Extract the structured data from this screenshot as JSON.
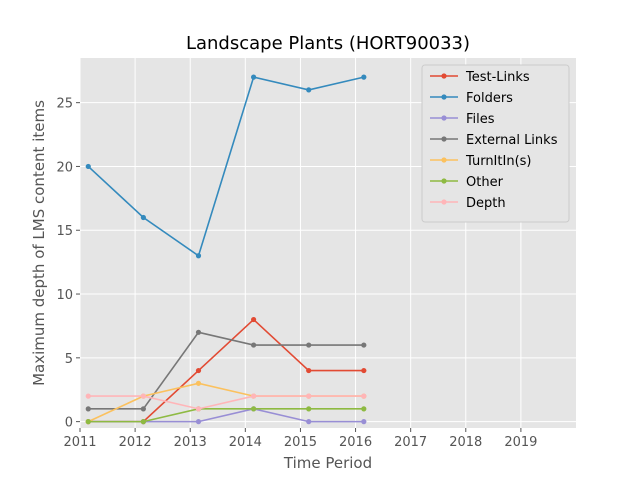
{
  "chart_data": {
    "type": "line",
    "title": "Landscape Plants (HORT90033)",
    "xlabel": "Time Period",
    "ylabel": "Maximum depth of LMS content items",
    "xlim": [
      2011,
      2020
    ],
    "ylim": [
      -0.5,
      28.5
    ],
    "xticks": [
      "2011",
      "2012",
      "2013",
      "2014",
      "2015",
      "2016",
      "2017",
      "2018",
      "2019"
    ],
    "yticks": [
      "0",
      "5",
      "10",
      "15",
      "20",
      "25"
    ],
    "x": [
      2011.15,
      2012.15,
      2013.15,
      2014.15,
      2015.15,
      2016.15
    ],
    "grid": true,
    "legend_position": "top-right",
    "series": [
      {
        "name": "Test-Links",
        "color": "#E24A33",
        "values": [
          0,
          0,
          4,
          8,
          4,
          4
        ]
      },
      {
        "name": "Folders",
        "color": "#348ABD",
        "values": [
          20,
          16,
          13,
          27,
          26,
          27
        ]
      },
      {
        "name": "Files",
        "color": "#988ED5",
        "values": [
          0,
          0,
          0,
          1,
          0,
          0
        ]
      },
      {
        "name": "External Links",
        "color": "#777777",
        "values": [
          1,
          1,
          7,
          6,
          6,
          6
        ]
      },
      {
        "name": "TurnItIn(s)",
        "color": "#FBC15E",
        "values": [
          0,
          2,
          3,
          2,
          2,
          2
        ]
      },
      {
        "name": "Other",
        "color": "#8EBA42",
        "values": [
          0,
          0,
          1,
          1,
          1,
          1
        ]
      },
      {
        "name": "Depth",
        "color": "#FFB5B8",
        "values": [
          2,
          2,
          1,
          2,
          2,
          2
        ]
      }
    ]
  }
}
